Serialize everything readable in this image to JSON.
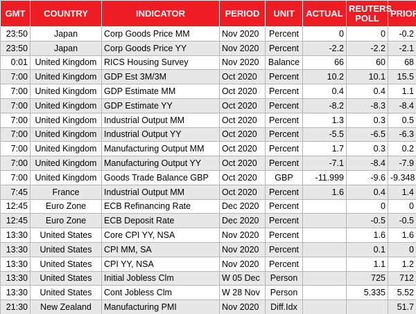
{
  "table": {
    "columns": [
      "GMT",
      "COUNTRY",
      "INDICATOR",
      "PERIOD",
      "UNIT",
      "ACTUAL",
      "REUTERS POLL",
      "PRIOR"
    ],
    "rows": [
      [
        "23:50",
        "Japan",
        "Corp Goods Price MM",
        "Nov 2020",
        "Percent",
        "0",
        "0",
        "-0.2"
      ],
      [
        "23:50",
        "Japan",
        "Corp Goods Price YY",
        "Nov 2020",
        "Percent",
        "-2.2",
        "-2.2",
        "-2.1"
      ],
      [
        "0:01",
        "United Kingdom",
        "RICS Housing Survey",
        "Nov 2020",
        "Balance",
        "66",
        "60",
        "68"
      ],
      [
        "7:00",
        "United Kingdom",
        "GDP Est 3M/3M",
        "Oct 2020",
        "Percent",
        "10.2",
        "10.1",
        "15.5"
      ],
      [
        "7:00",
        "United Kingdom",
        "GDP Estimate MM",
        "Oct 2020",
        "Percent",
        "0.4",
        "0.4",
        "1.1"
      ],
      [
        "7:00",
        "United Kingdom",
        "GDP Estimate YY",
        "Oct 2020",
        "Percent",
        "-8.2",
        "-8.3",
        "-8.4"
      ],
      [
        "7:00",
        "United Kingdom",
        "Industrial Output MM",
        "Oct 2020",
        "Percent",
        "1.3",
        "0.3",
        "0.5"
      ],
      [
        "7:00",
        "United Kingdom",
        "Industrial Output YY",
        "Oct 2020",
        "Percent",
        "-5.5",
        "-6.5",
        "-6.3"
      ],
      [
        "7:00",
        "United Kingdom",
        "Manufacturing Output MM",
        "Oct 2020",
        "Percent",
        "1.7",
        "0.3",
        "0.2"
      ],
      [
        "7:00",
        "United Kingdom",
        "Manufacturing Output YY",
        "Oct 2020",
        "Percent",
        "-7.1",
        "-8.4",
        "-7.9"
      ],
      [
        "7:00",
        "United Kingdom",
        "Goods Trade Balance GBP",
        "Oct 2020",
        "GBP",
        "-11.999",
        "-9.6",
        "-9.348"
      ],
      [
        "7:45",
        "France",
        "Industrial Output MM",
        "Oct 2020",
        "Percent",
        "1.6",
        "0.4",
        "1.4"
      ],
      [
        "12:45",
        "Euro Zone",
        "ECB Refinancing Rate",
        "Dec 2020",
        "Percent",
        null,
        "0",
        "0"
      ],
      [
        "12:45",
        "Euro Zone",
        "ECB Deposit Rate",
        "Dec 2020",
        "Percent",
        null,
        "-0.5",
        "-0.5"
      ],
      [
        "13:30",
        "United States",
        "Core CPI YY, NSA",
        "Nov 2020",
        "Percent",
        null,
        "1.6",
        "1.6"
      ],
      [
        "13:30",
        "United States",
        "CPI MM, SA",
        "Nov 2020",
        "Percent",
        null,
        "0.1",
        "0"
      ],
      [
        "13:30",
        "United States",
        "CPI YY, NSA",
        "Nov 2020",
        "Percent",
        null,
        "1.1",
        "1.2"
      ],
      [
        "13:30",
        "United States",
        "Initial Jobless Clm",
        "W 05 Dec",
        "Person",
        null,
        "725",
        "712"
      ],
      [
        "13:30",
        "United States",
        "Cont Jobless Clm",
        "W 28 Nov",
        "Person",
        null,
        "5.335",
        "5.52"
      ],
      [
        "21:30",
        "New Zealand",
        "Manufacturing PMI",
        "Nov 2020",
        "Diff.Idx",
        null,
        null,
        "51.7"
      ]
    ]
  }
}
